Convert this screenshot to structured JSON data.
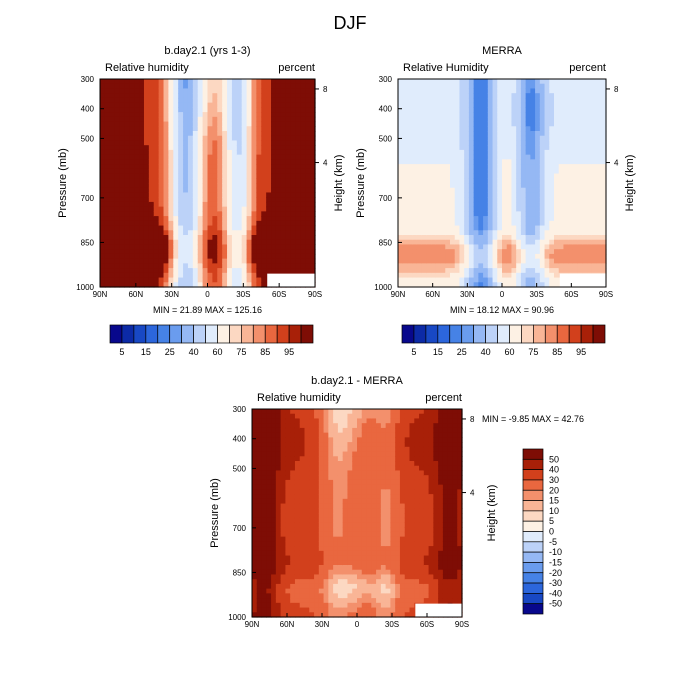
{
  "figure_title": "DJF",
  "chart_data": [
    {
      "type": "heatmap",
      "title": "b.day2.1 (yrs 1-3)",
      "left_label": "Relative humidity",
      "right_label": "percent",
      "ylabel": "Pressure (mb)",
      "ylabel_right": "Height (km)",
      "x_ticks": [
        "90N",
        "60N",
        "30N",
        "0",
        "30S",
        "60S",
        "90S"
      ],
      "x_values": [
        90,
        60,
        30,
        0,
        -30,
        -60,
        -90
      ],
      "y_ticks": [
        "300",
        "400",
        "500",
        "700",
        "850",
        "1000"
      ],
      "y_values": [
        300,
        400,
        500,
        700,
        850,
        1000
      ],
      "ylim": [
        1000,
        300
      ],
      "height_ticks": [
        "8",
        "4"
      ],
      "height_values": [
        8,
        4
      ],
      "min_label": "MIN =  21.89  MAX = 125.16",
      "min": 21.89,
      "max": 125.16,
      "field": "rh_model"
    },
    {
      "type": "heatmap",
      "title": "MERRA",
      "left_label": "Relative Humidity",
      "right_label": "percent",
      "ylabel": "Pressure (mb)",
      "ylabel_right": "Height (km)",
      "x_ticks": [
        "90N",
        "60N",
        "30N",
        "0",
        "30S",
        "60S",
        "90S"
      ],
      "x_values": [
        90,
        60,
        30,
        0,
        -30,
        -60,
        -90
      ],
      "y_ticks": [
        "300",
        "400",
        "500",
        "700",
        "850",
        "1000"
      ],
      "y_values": [
        300,
        400,
        500,
        700,
        850,
        1000
      ],
      "ylim": [
        1000,
        300
      ],
      "height_ticks": [
        "8",
        "4"
      ],
      "height_values": [
        8,
        4
      ],
      "min_label": "MIN =  18.12  MAX =  90.96",
      "min": 18.12,
      "max": 90.96,
      "field": "rh_obs"
    },
    {
      "type": "heatmap",
      "title": "b.day2.1 - MERRA",
      "left_label": "Relative humidity",
      "right_label": "percent",
      "ylabel": "Pressure (mb)",
      "ylabel_right": "Height (km)",
      "x_ticks": [
        "90N",
        "60N",
        "30N",
        "0",
        "30S",
        "60S",
        "90S"
      ],
      "x_values": [
        90,
        60,
        30,
        0,
        -30,
        -60,
        -90
      ],
      "y_ticks": [
        "300",
        "400",
        "500",
        "700",
        "850",
        "1000"
      ],
      "y_values": [
        300,
        400,
        500,
        700,
        850,
        1000
      ],
      "ylim": [
        1000,
        300
      ],
      "height_ticks": [
        "8",
        "4"
      ],
      "height_values": [
        8,
        4
      ],
      "min_label": "MIN =  -9.85  MAX =  42.76",
      "min": -9.85,
      "max": 42.76,
      "field": "rh_diff"
    }
  ],
  "colorbar_abs": {
    "labels": [
      "5",
      "15",
      "25",
      "40",
      "60",
      "75",
      "85",
      "95"
    ],
    "levels": [
      5,
      10,
      15,
      20,
      25,
      30,
      40,
      50,
      60,
      70,
      75,
      80,
      85,
      90,
      95
    ],
    "colors": [
      "#08088c",
      "#0c2aa6",
      "#1848c4",
      "#2c66dc",
      "#4682e6",
      "#6a9cee",
      "#95b8f4",
      "#bcd2f8",
      "#e0ecfc",
      "#fdf1e4",
      "#fcd8c2",
      "#f9b596",
      "#f3906c",
      "#e9673f",
      "#d2401c",
      "#a82008",
      "#7e0d05"
    ]
  },
  "colorbar_diff": {
    "labels": [
      "50",
      "40",
      "30",
      "20",
      "15",
      "10",
      "5",
      "0",
      "-5",
      "-10",
      "-15",
      "-20",
      "-30",
      "-40",
      "-50"
    ],
    "levels": [
      50,
      40,
      30,
      20,
      15,
      10,
      5,
      0,
      -5,
      -10,
      -15,
      -20,
      -30,
      -40,
      -50
    ],
    "colors": [
      "#7e0d05",
      "#a82008",
      "#d2401c",
      "#e9673f",
      "#f3906c",
      "#f9b596",
      "#fcd8c2",
      "#fdf1e4",
      "#e0ecfc",
      "#bcd2f8",
      "#95b8f4",
      "#6a9cee",
      "#4682e6",
      "#2c66dc",
      "#1848c4",
      "#08088c"
    ]
  },
  "no_data_color": "#ffffff"
}
